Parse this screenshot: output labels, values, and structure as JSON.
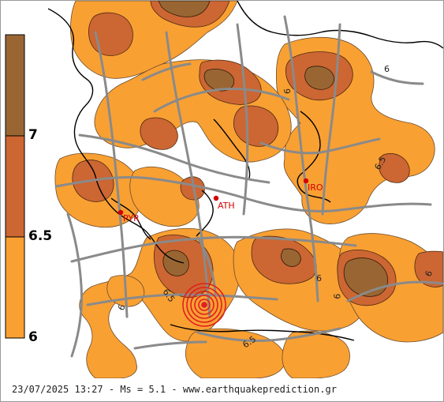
{
  "legend": {
    "colors": {
      "level_7_plus": "#996633",
      "level_6_5_to_7": "#cc6633",
      "level_6_to_6_5": "#f9a033",
      "below_6": "#ffffff"
    },
    "labels": [
      "7",
      "6.5",
      "6"
    ]
  },
  "cities": [
    {
      "code": "ATH"
    },
    {
      "code": "PYR"
    },
    {
      "code": "IRO"
    }
  ],
  "contour_labels": [
    "6",
    "6",
    "6",
    "6.5",
    "6.5",
    "6",
    "6",
    "6.5",
    "6",
    "6"
  ],
  "epicenter": {
    "color": "#e02020"
  },
  "footer": {
    "date": "23/07/2025",
    "time": "13:27",
    "magnitude_label": "Ms",
    "magnitude": "5.1",
    "website": "www.earthquakeprediction.gr"
  }
}
